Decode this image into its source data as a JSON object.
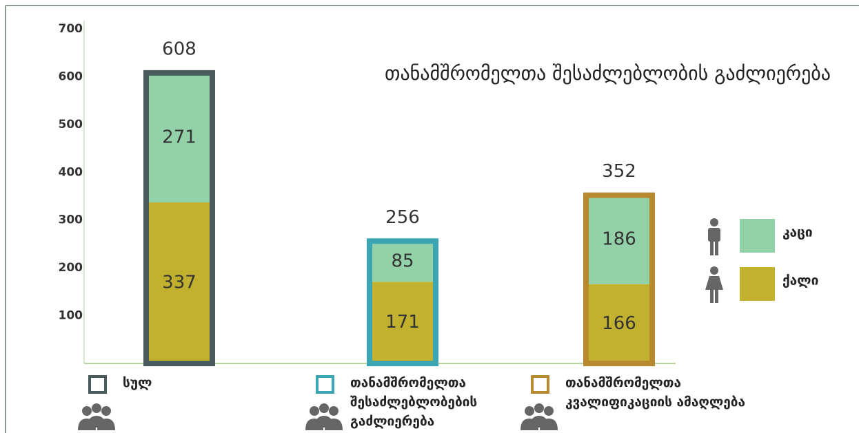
{
  "chart_data": {
    "type": "stacked_bar",
    "title": "თანამშრომელთა შესაძლებლობის გაძლიერება",
    "categories": [
      "სულ",
      "თანამშრომელთა შესაძლებლობების გაძლიერება",
      "თანამშრომელთა კვალიფიკაციის ამაღლება"
    ],
    "category_colors": [
      "#4a5b5d",
      "#3ba6b1",
      "#b8892f"
    ],
    "series": [
      {
        "name": "კაცი",
        "color": "#93d1a9",
        "values": [
          271,
          85,
          186
        ]
      },
      {
        "name": "ქალი",
        "color": "#c1b12f",
        "values": [
          337,
          171,
          166
        ]
      }
    ],
    "totals": [
      608,
      256,
      352
    ],
    "ylim": [
      0,
      700
    ],
    "yticks": [
      100,
      200,
      300,
      400,
      500,
      600,
      700
    ]
  }
}
